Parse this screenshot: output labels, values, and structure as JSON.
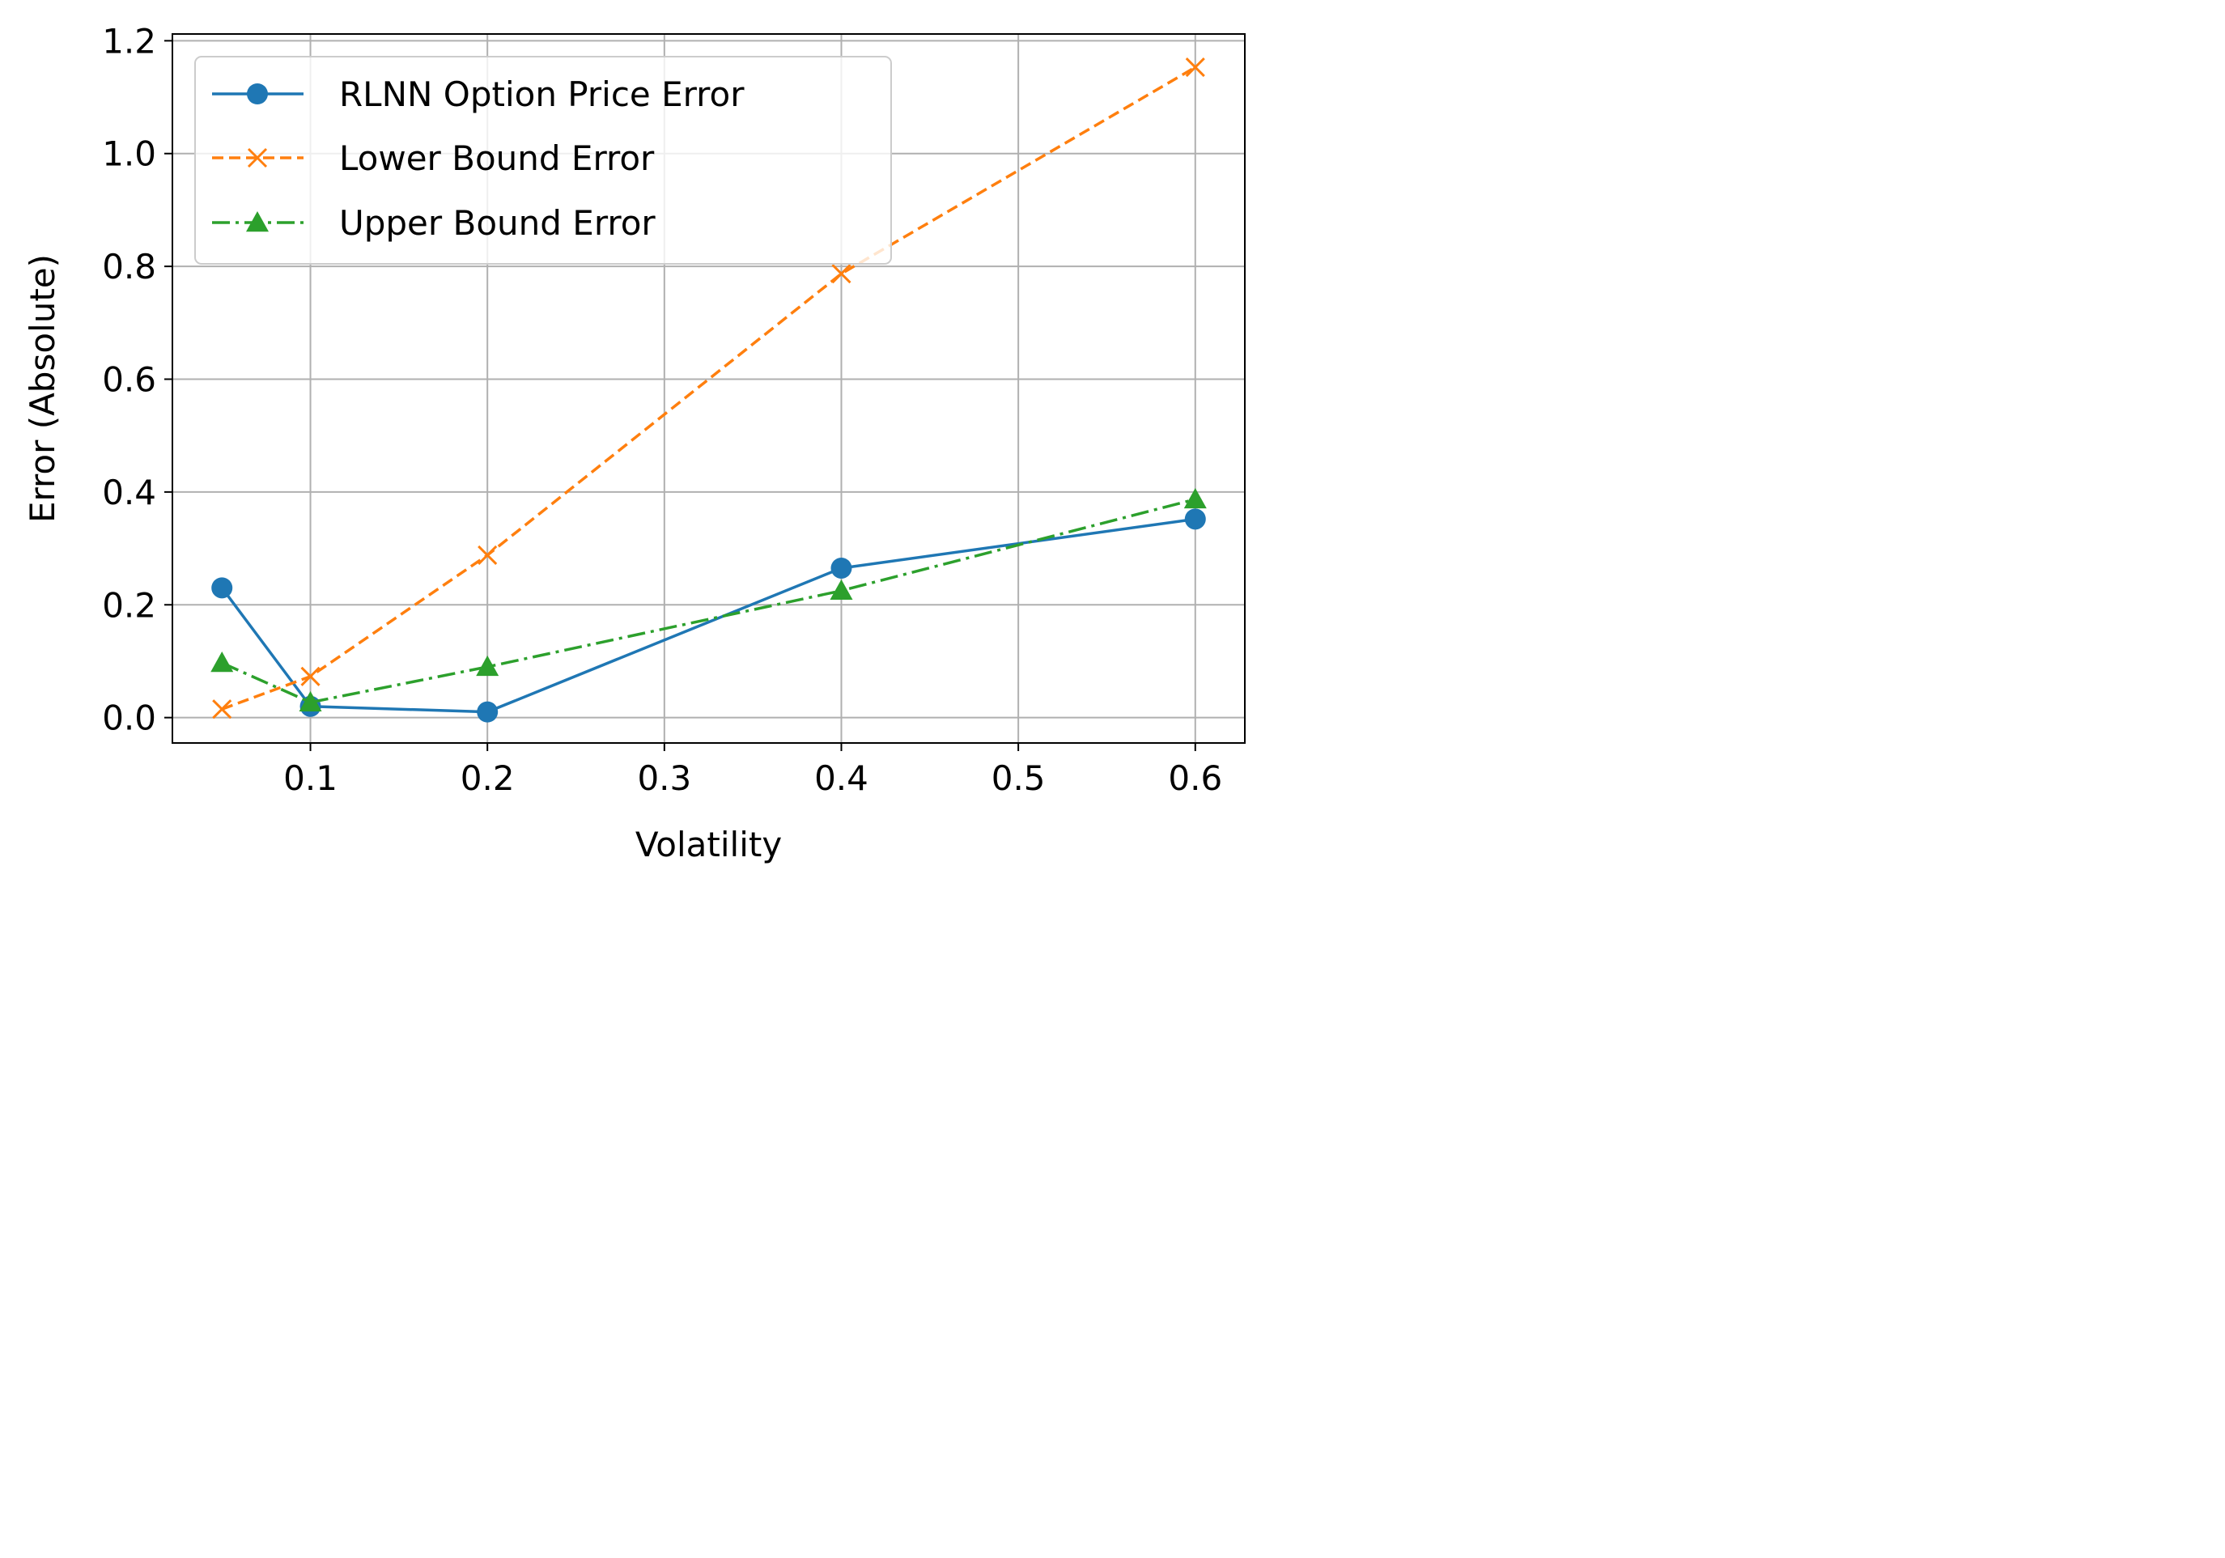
{
  "chart_data": {
    "type": "line",
    "title": "",
    "xlabel": "Volatility",
    "ylabel": "Error (Absolute)",
    "xlim": [
      0.022,
      0.628
    ],
    "ylim": [
      -0.045,
      1.212
    ],
    "xticks": [
      0.1,
      0.2,
      0.3,
      0.4,
      0.5,
      0.6
    ],
    "xtick_labels": [
      "0.1",
      "0.2",
      "0.3",
      "0.4",
      "0.5",
      "0.6"
    ],
    "yticks": [
      0.0,
      0.2,
      0.4,
      0.6,
      0.8,
      1.0,
      1.2
    ],
    "ytick_labels": [
      "0.0",
      "0.2",
      "0.4",
      "0.6",
      "0.8",
      "1.0",
      "1.2"
    ],
    "grid": true,
    "legend_position": "upper-left",
    "series": [
      {
        "name": "RLNN Option Price Error",
        "color": "#1f77b4",
        "linestyle": "solid",
        "marker": "circle",
        "x": [
          0.05,
          0.1,
          0.2,
          0.4,
          0.6
        ],
        "y": [
          0.23,
          0.02,
          0.01,
          0.265,
          0.352
        ]
      },
      {
        "name": "Lower Bound Error",
        "color": "#ff7f0e",
        "linestyle": "dashed",
        "marker": "x",
        "x": [
          0.05,
          0.1,
          0.2,
          0.4,
          0.6
        ],
        "y": [
          0.015,
          0.073,
          0.288,
          0.787,
          1.153
        ]
      },
      {
        "name": "Upper Bound Error",
        "color": "#2ca02c",
        "linestyle": "dashdot",
        "marker": "triangle",
        "x": [
          0.05,
          0.1,
          0.2,
          0.4,
          0.6
        ],
        "y": [
          0.097,
          0.027,
          0.09,
          0.225,
          0.387
        ]
      }
    ]
  }
}
